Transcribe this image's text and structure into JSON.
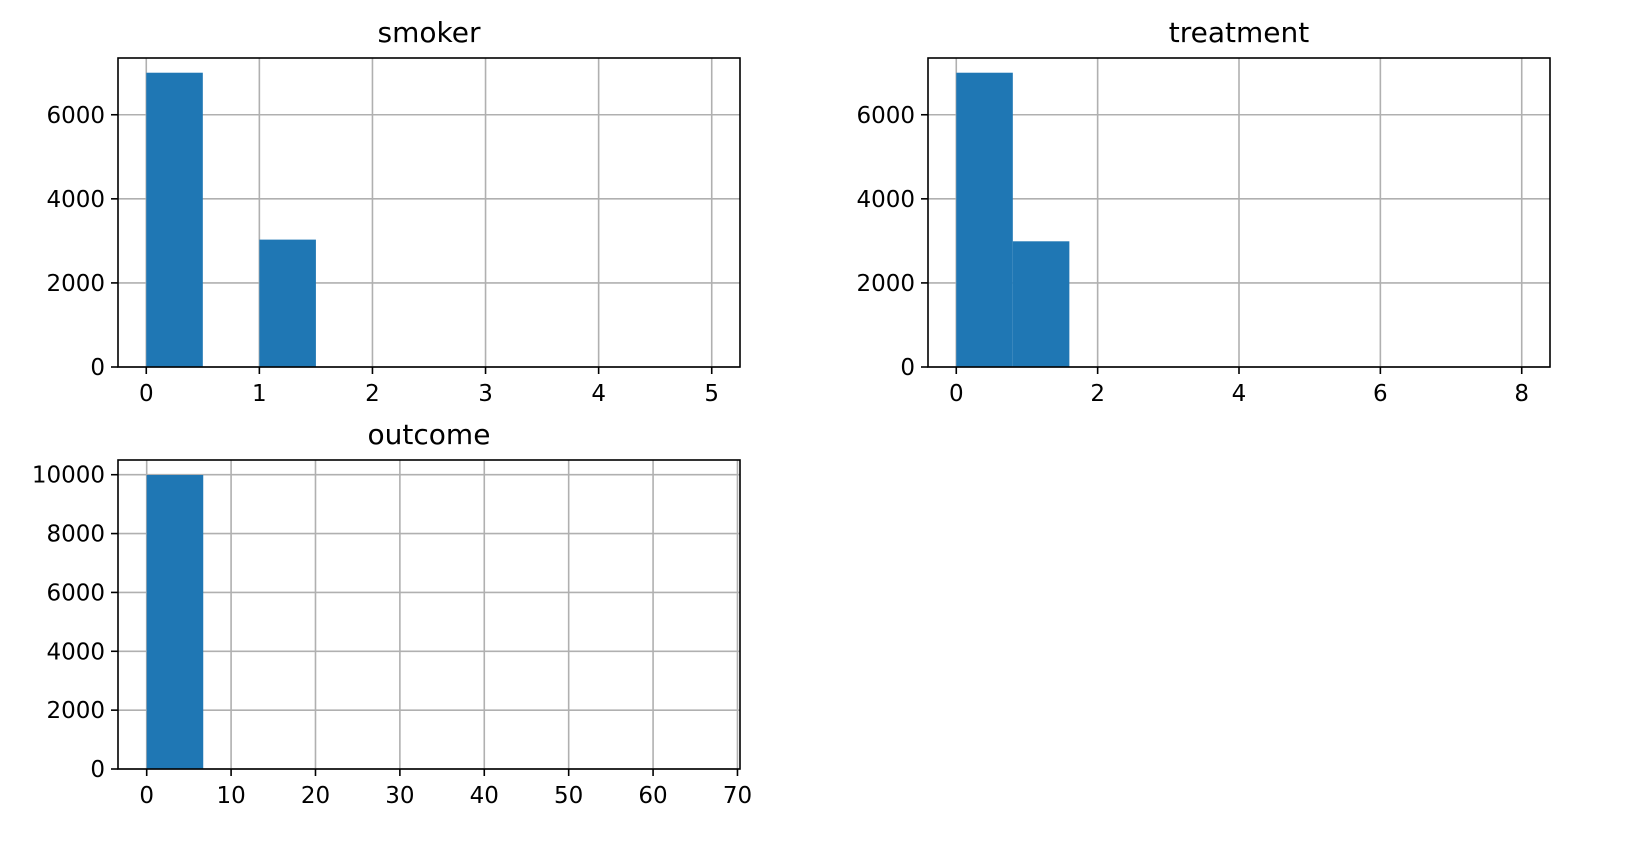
{
  "chart_data": [
    {
      "type": "bar",
      "title": "smoker",
      "xlabel": "",
      "ylabel": "",
      "xlim": [
        -0.25,
        5.25
      ],
      "ylim": [
        0,
        7350
      ],
      "xticks": [
        0,
        1,
        2,
        3,
        4,
        5
      ],
      "yticks": [
        0,
        2000,
        4000,
        6000
      ],
      "grid": true,
      "bins": [
        {
          "x0": 0.0,
          "x1": 0.5,
          "count": 7000
        },
        {
          "x0": 0.5,
          "x1": 1.0,
          "count": 0
        },
        {
          "x0": 1.0,
          "x1": 1.5,
          "count": 3030
        },
        {
          "x0": 1.5,
          "x1": 2.0,
          "count": 0
        },
        {
          "x0": 2.0,
          "x1": 2.5,
          "count": 0
        },
        {
          "x0": 2.5,
          "x1": 3.0,
          "count": 0
        },
        {
          "x0": 3.0,
          "x1": 3.5,
          "count": 0
        },
        {
          "x0": 3.5,
          "x1": 4.0,
          "count": 0
        },
        {
          "x0": 4.0,
          "x1": 4.5,
          "count": 0
        },
        {
          "x0": 4.5,
          "x1": 5.0,
          "count": 0
        }
      ],
      "color": "#1f77b4"
    },
    {
      "type": "bar",
      "title": "treatment",
      "xlabel": "",
      "ylabel": "",
      "xlim": [
        -0.4,
        8.4
      ],
      "ylim": [
        0,
        7350
      ],
      "xticks": [
        0,
        2,
        4,
        6,
        8
      ],
      "yticks": [
        0,
        2000,
        4000,
        6000
      ],
      "grid": true,
      "bins": [
        {
          "x0": 0.0,
          "x1": 0.8,
          "count": 7000
        },
        {
          "x0": 0.8,
          "x1": 1.6,
          "count": 2990
        },
        {
          "x0": 1.6,
          "x1": 2.4,
          "count": 0
        },
        {
          "x0": 2.4,
          "x1": 3.2,
          "count": 0
        },
        {
          "x0": 3.2,
          "x1": 4.0,
          "count": 0
        },
        {
          "x0": 4.0,
          "x1": 4.8,
          "count": 0
        },
        {
          "x0": 4.8,
          "x1": 5.6,
          "count": 0
        },
        {
          "x0": 5.6,
          "x1": 6.4,
          "count": 0
        },
        {
          "x0": 6.4,
          "x1": 7.2,
          "count": 0
        },
        {
          "x0": 7.2,
          "x1": 8.0,
          "count": 0
        }
      ],
      "color": "#1f77b4"
    },
    {
      "type": "bar",
      "title": "outcome",
      "xlabel": "",
      "ylabel": "",
      "xlim": [
        -3.4,
        70.3
      ],
      "ylim": [
        0,
        10500
      ],
      "xticks": [
        0,
        10,
        20,
        30,
        40,
        50,
        60,
        70
      ],
      "yticks": [
        0,
        2000,
        4000,
        6000,
        8000,
        10000
      ],
      "grid": true,
      "bins": [
        {
          "x0": 0.0,
          "x1": 6.7,
          "count": 9990
        },
        {
          "x0": 6.7,
          "x1": 13.4,
          "count": 0
        },
        {
          "x0": 13.4,
          "x1": 20.1,
          "count": 0
        },
        {
          "x0": 20.1,
          "x1": 26.8,
          "count": 0
        },
        {
          "x0": 26.8,
          "x1": 33.5,
          "count": 0
        },
        {
          "x0": 33.5,
          "x1": 40.2,
          "count": 0
        },
        {
          "x0": 40.2,
          "x1": 46.9,
          "count": 0
        },
        {
          "x0": 46.9,
          "x1": 53.6,
          "count": 0
        },
        {
          "x0": 53.6,
          "x1": 60.3,
          "count": 0
        },
        {
          "x0": 60.3,
          "x1": 67.0,
          "count": 0
        }
      ],
      "color": "#1f77b4"
    }
  ]
}
